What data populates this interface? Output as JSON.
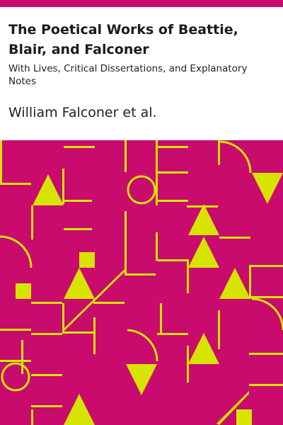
{
  "cover": {
    "title": "The Poetical Works of Beattie, Blair, and Falconer",
    "subtitle": "With Lives, Critical Dissertations, and Explanatory Notes",
    "author": "William Falconer et al."
  },
  "colors": {
    "background": "#c90b6d",
    "pattern": "#d7e400",
    "text": "#1c1c1c",
    "panel": "#ffffff"
  }
}
